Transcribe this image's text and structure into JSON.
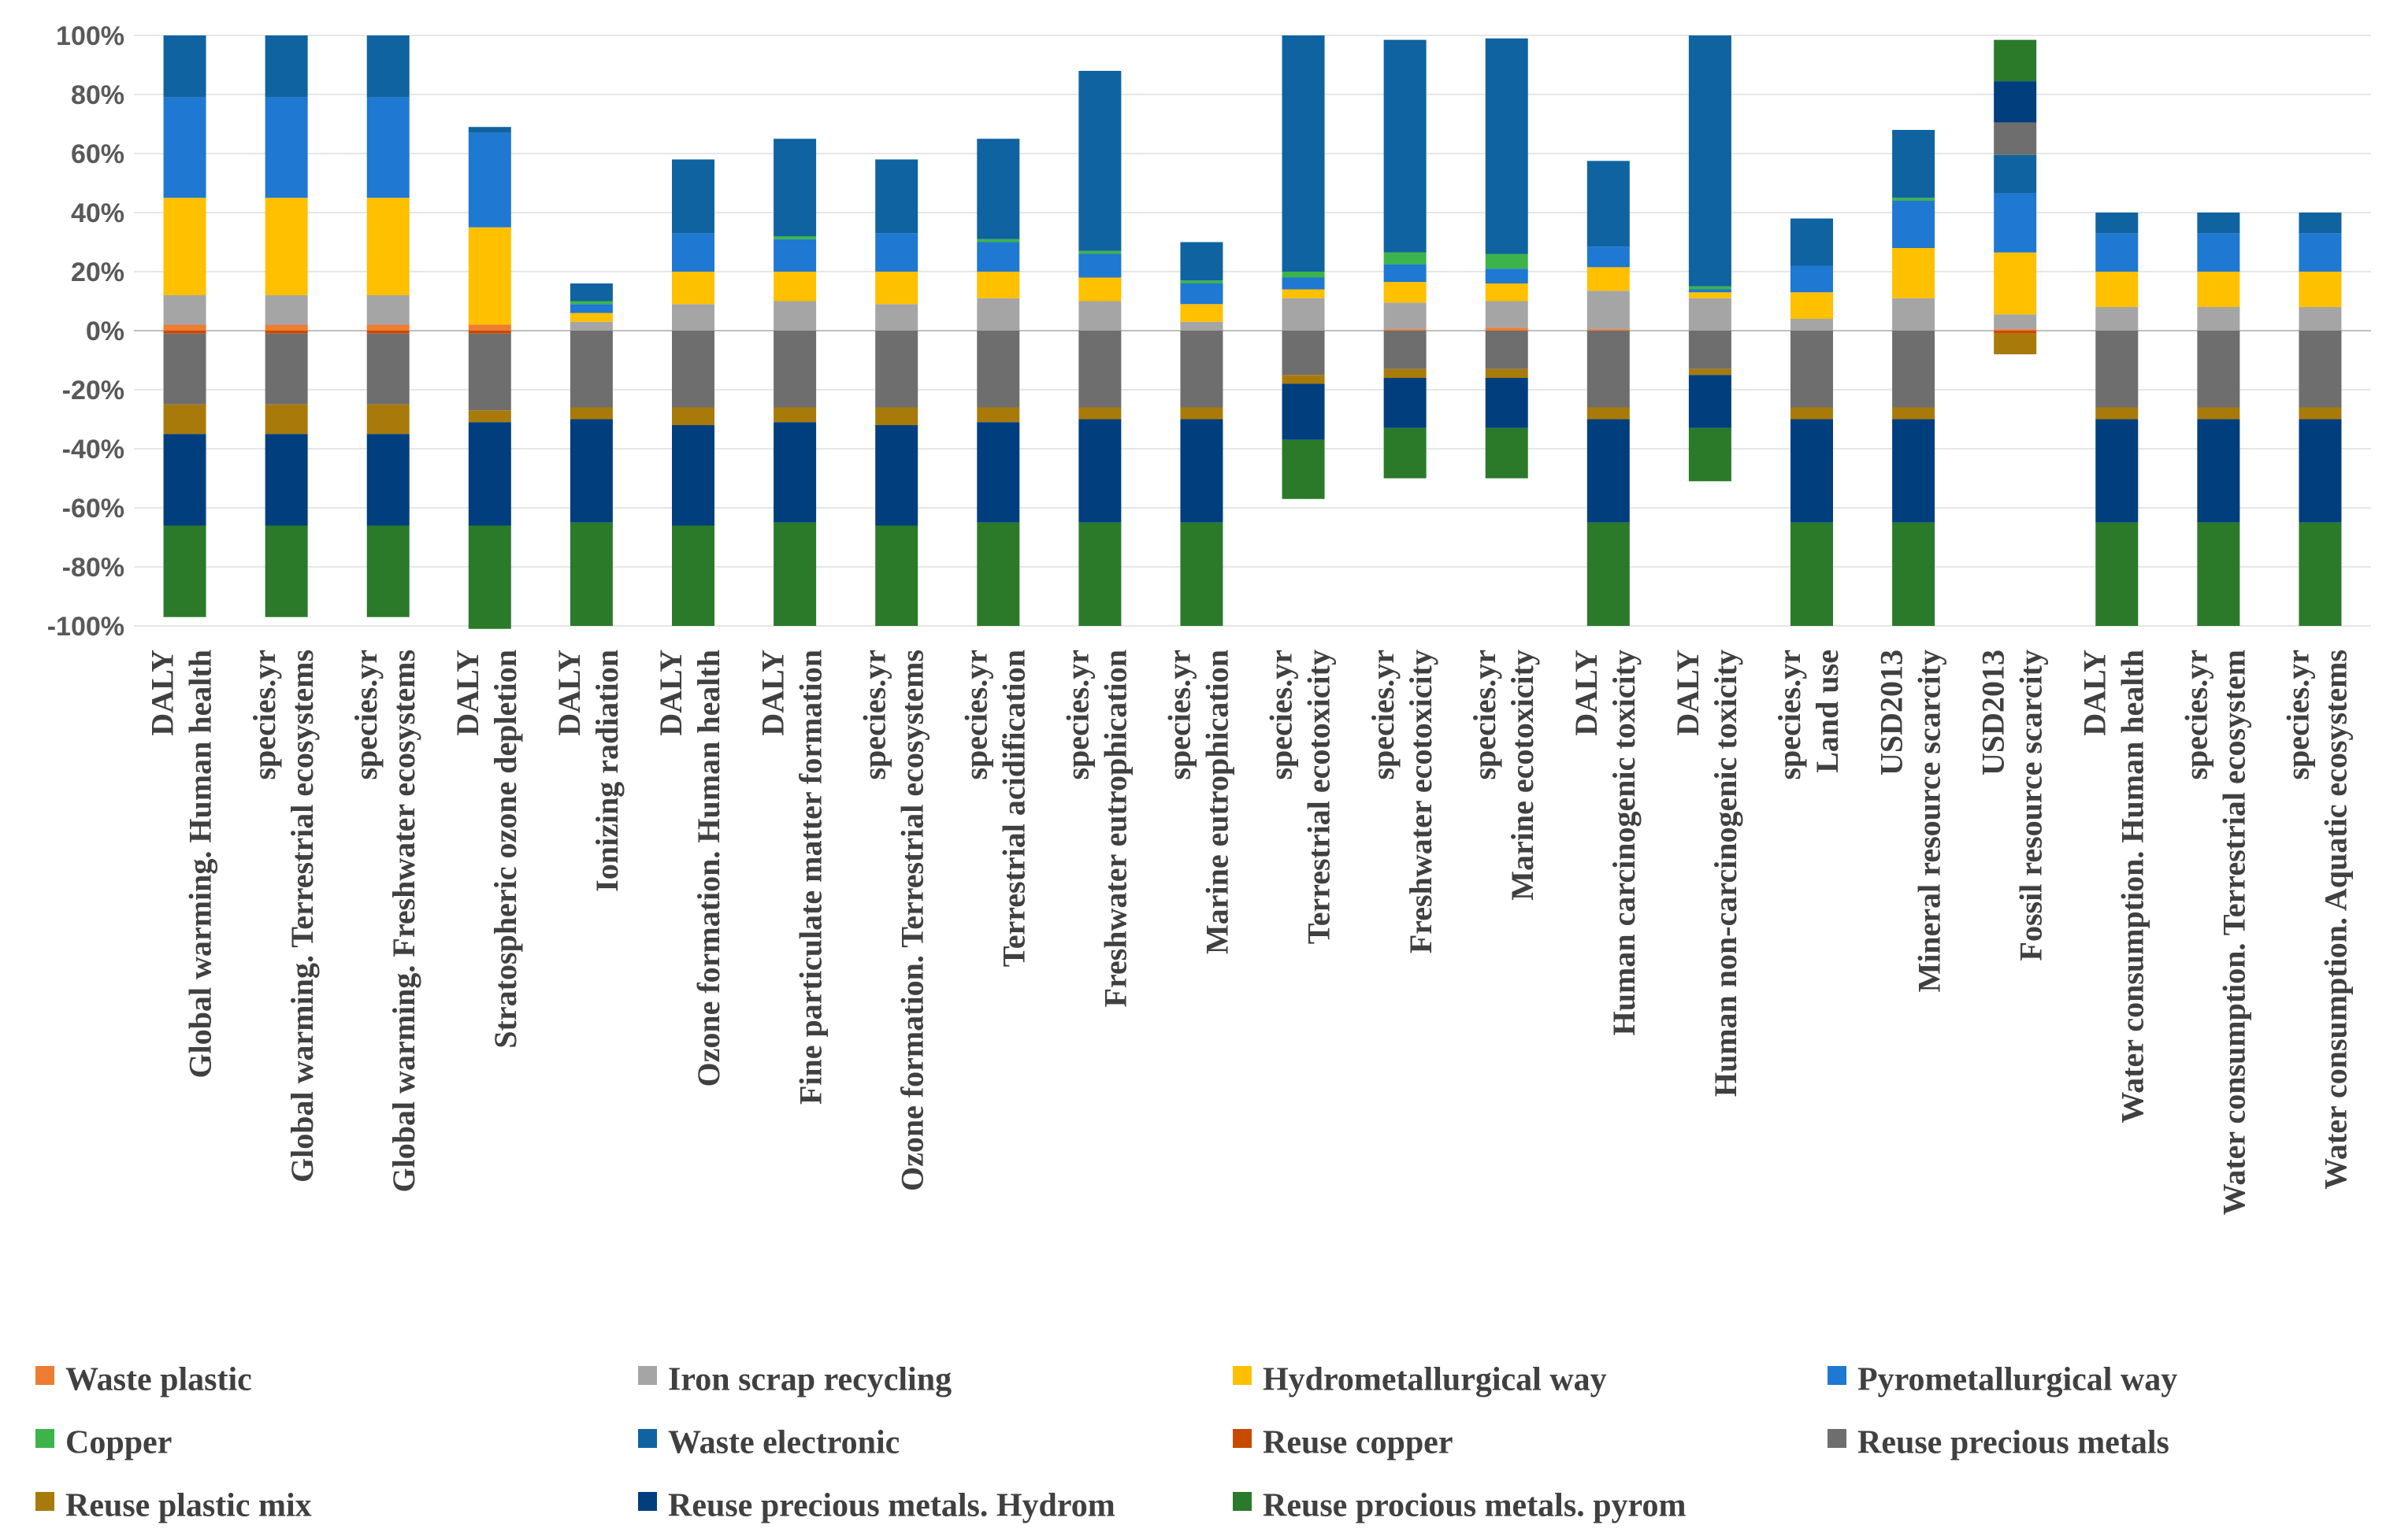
{
  "chart_data": {
    "type": "bar",
    "stacked": true,
    "title": "",
    "xlabel": "",
    "ylabel": "",
    "ylim": [
      -100,
      100
    ],
    "yticks": [
      100,
      80,
      60,
      40,
      20,
      0,
      -20,
      -40,
      -60,
      -80,
      -100
    ],
    "ytick_labels": [
      "100%",
      "80%",
      "60%",
      "40%",
      "20%",
      "0%",
      "-20%",
      "-40%",
      "-60%",
      "-80%",
      "-100%"
    ],
    "legend_position": "bottom",
    "categories": [
      [
        "Global warming. Human health",
        "DALY"
      ],
      [
        "Global warming. Terrestrial ecosystems",
        "species.yr"
      ],
      [
        "Global warming. Freshwater ecosystems",
        "species.yr"
      ],
      [
        "Stratospheric ozone depletion",
        "DALY"
      ],
      [
        "Ionizing radiation",
        "DALY"
      ],
      [
        "Ozone formation. Human health",
        "DALY"
      ],
      [
        "Fine particulate matter formation",
        "DALY"
      ],
      [
        "Ozone formation. Terrestrial ecosystems",
        "species.yr"
      ],
      [
        "Terrestrial acidification",
        "species.yr"
      ],
      [
        "Freshwater eutrophication",
        "species.yr"
      ],
      [
        "Marine eutrophication",
        "species.yr"
      ],
      [
        "Terrestrial ecotoxicity",
        "species.yr"
      ],
      [
        "Freshwater ecotoxicity",
        "species.yr"
      ],
      [
        "Marine ecotoxicity",
        "species.yr"
      ],
      [
        "Human carcinogenic toxicity",
        "DALY"
      ],
      [
        "Human non-carcinogenic toxicity",
        "DALY"
      ],
      [
        "Land use",
        "species.yr"
      ],
      [
        "Mineral resource scarcity",
        "USD2013"
      ],
      [
        "Fossil resource scarcity",
        "USD2013"
      ],
      [
        "Water consumption. Human health",
        "DALY"
      ],
      [
        "Water consumption. Terrestrial ecosystem",
        "species.yr"
      ],
      [
        "Water consumption. Aquatic ecosystems",
        "species.yr"
      ]
    ],
    "series": [
      {
        "name": "Waste plastic",
        "color": "#ED7D31",
        "values": [
          2,
          2,
          2,
          2,
          0,
          0,
          0,
          0,
          0,
          0,
          0,
          0,
          0.5,
          1,
          0.5,
          0,
          0,
          0,
          0.5,
          0,
          0,
          0
        ]
      },
      {
        "name": "Iron scrap recycling",
        "color": "#A5A5A5",
        "values": [
          10,
          10,
          10,
          0,
          3,
          9,
          10,
          9,
          11,
          10,
          3,
          11,
          9,
          9,
          13,
          11,
          4,
          11,
          5,
          8,
          8,
          8
        ]
      },
      {
        "name": "Hydrometallurgical way",
        "color": "#FFC000",
        "values": [
          33,
          33,
          33,
          33,
          3,
          11,
          10,
          11,
          9,
          8,
          6,
          3,
          7,
          6,
          8,
          2,
          9,
          17,
          21,
          12,
          12,
          12
        ]
      },
      {
        "name": "Pyrometallurgical way",
        "color": "#1F78D1",
        "values": [
          34,
          34,
          34,
          32,
          3,
          13,
          11,
          13,
          10,
          8,
          7,
          4,
          6,
          5,
          7,
          1,
          9,
          16,
          20,
          13,
          13,
          13
        ]
      },
      {
        "name": "Copper",
        "color": "#3CB44B",
        "values": [
          0,
          0,
          0,
          0,
          1,
          0,
          1,
          0,
          1,
          1,
          1,
          2,
          4,
          5,
          0,
          1,
          0,
          1,
          0,
          0,
          0,
          0
        ]
      },
      {
        "name": "Waste electronic",
        "color": "#0F63A0",
        "values": [
          21,
          21,
          21,
          2,
          6,
          25,
          33,
          25,
          34,
          61,
          13,
          80,
          72,
          73,
          29,
          85,
          16,
          23,
          13,
          7,
          7,
          7
        ]
      },
      {
        "name": "Reuse copper",
        "color": "#C84A00",
        "values": [
          -1,
          -1,
          -1,
          -1,
          0,
          0,
          0,
          0,
          0,
          0,
          0,
          0,
          0,
          0,
          0,
          0,
          0,
          0,
          -1,
          0,
          0,
          0
        ]
      },
      {
        "name": "Reuse precious metals",
        "color": "#6E6E6E",
        "values": [
          -24,
          -24,
          -24,
          -26,
          -26,
          -26,
          -26,
          -26,
          -26,
          -26,
          -26,
          -15,
          -13,
          -13,
          -26,
          -13,
          -26,
          -26,
          11,
          -26,
          -26,
          -26
        ]
      },
      {
        "name": "Reuse plastic mix",
        "color": "#A87A0A",
        "values": [
          -10,
          -10,
          -10,
          -4,
          -4,
          -6,
          -5,
          -6,
          -5,
          -4,
          -4,
          -3,
          -3,
          -3,
          -4,
          -2,
          -4,
          -4,
          -7,
          -4,
          -4,
          -4
        ]
      },
      {
        "name": "Reuse precious metals. Hydrom",
        "color": "#003E7E",
        "values": [
          -31,
          -31,
          -31,
          -35,
          -35,
          -34,
          -34,
          -34,
          -34,
          -35,
          -35,
          -19,
          -17,
          -17,
          -35,
          -18,
          -35,
          -35,
          14,
          -35,
          -35,
          -35
        ]
      },
      {
        "name": "Reuse procious metals. pyrom",
        "color": "#2A7A2A",
        "values": [
          -31,
          -31,
          -31,
          -35,
          -35,
          -34,
          -35,
          -34,
          -35,
          -35,
          -35,
          -20,
          -17,
          -17,
          -35,
          -18,
          -35,
          -35,
          14,
          -35,
          -35,
          -35
        ]
      }
    ]
  }
}
